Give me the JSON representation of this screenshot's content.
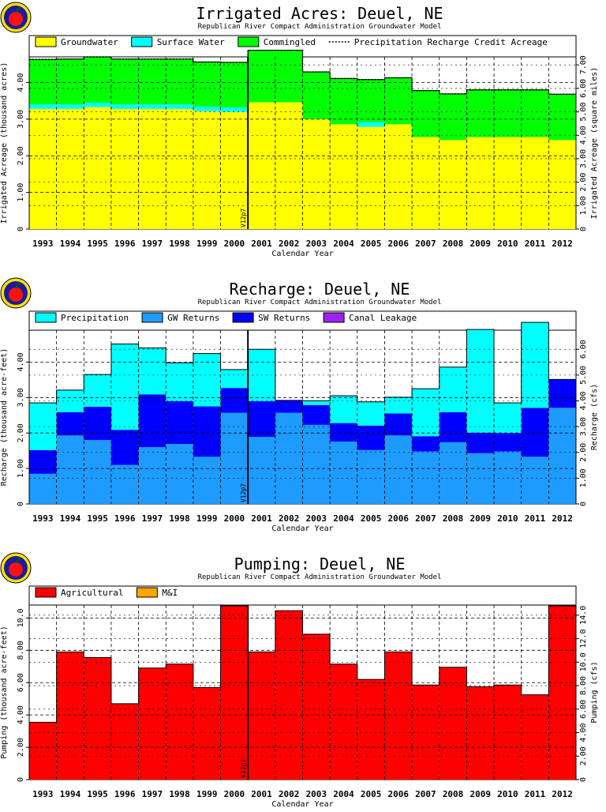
{
  "chart_data": [
    {
      "type": "bar",
      "title": "Irrigated Acres: Deuel, NE",
      "subtitle": "Republican River Compact Administration Groundwater Model",
      "xlabel": "Calendar Year",
      "ylabel": "Irrigated Acreage (thousand acres)",
      "y2label": "Irrigated Acreage (square miles)",
      "categories": [
        "1993",
        "1994",
        "1995",
        "1996",
        "1997",
        "1998",
        "1999",
        "2000",
        "2001",
        "2002",
        "2003",
        "2004",
        "2005",
        "2006",
        "2007",
        "2008",
        "2009",
        "2010",
        "2011",
        "2012"
      ],
      "ylim": [
        0,
        4.7
      ],
      "yticks": [
        0,
        1.0,
        2.0,
        3.0,
        4.0
      ],
      "ytick_labels": [
        "0",
        "1.00",
        "2.00",
        "3.00",
        "4.00"
      ],
      "y2ticks": [
        0,
        1.0,
        2.0,
        3.0,
        4.0,
        5.0,
        6.0,
        7.0
      ],
      "y2ytick_labels": [],
      "y2tick_labels": [
        "0",
        "1.00",
        "2.00",
        "3.00",
        "4.00",
        "5.00",
        "6.00",
        "7.00"
      ],
      "y2scale": 0.64,
      "stacked": true,
      "legend_position": "top",
      "grid": true,
      "series": [
        {
          "name": "Groundwater",
          "color": "#ffff00",
          "values": [
            3.28,
            3.28,
            3.33,
            3.28,
            3.28,
            3.28,
            3.22,
            3.2,
            3.46,
            3.46,
            3.0,
            2.86,
            2.79,
            2.86,
            2.51,
            2.43,
            2.51,
            2.51,
            2.51,
            2.43
          ]
        },
        {
          "name": "Surface Water",
          "color": "#00ffff",
          "values": [
            0.12,
            0.12,
            0.12,
            0.12,
            0.12,
            0.12,
            0.12,
            0.12,
            0,
            0,
            0,
            0,
            0.13,
            0,
            0,
            0,
            0,
            0,
            0,
            0
          ]
        },
        {
          "name": "Commingled",
          "color": "#00ff00",
          "values": [
            1.23,
            1.24,
            1.25,
            1.24,
            1.24,
            1.24,
            1.22,
            1.23,
            1.42,
            1.42,
            1.29,
            1.25,
            1.16,
            1.27,
            1.27,
            1.26,
            1.29,
            1.29,
            1.29,
            1.25
          ]
        }
      ],
      "line_series": {
        "name": "Precipitation Recharge Credit Acreage",
        "values": [
          4.63,
          4.64,
          4.7,
          4.64,
          4.64,
          4.64,
          4.56,
          4.55,
          4.88,
          4.88,
          4.29,
          4.11,
          4.08,
          4.13,
          3.78,
          3.69,
          3.8,
          3.8,
          3.8,
          3.68
        ]
      },
      "marker_label": "V12p7",
      "marker_after_index": 7
    },
    {
      "type": "bar",
      "title": "Recharge: Deuel, NE",
      "subtitle": "Republican River Compact Administration Groundwater Model",
      "xlabel": "Calendar Year",
      "ylabel": "Recharge (thousand acre-feet)",
      "y2label": "Recharge (cfs)",
      "categories": [
        "1993",
        "1994",
        "1995",
        "1996",
        "1997",
        "1998",
        "1999",
        "2000",
        "2001",
        "2002",
        "2003",
        "2004",
        "2005",
        "2006",
        "2007",
        "2008",
        "2009",
        "2010",
        "2011",
        "2012"
      ],
      "ylim": [
        0,
        4.9
      ],
      "yticks": [
        0,
        1.0,
        2.0,
        3.0,
        4.0
      ],
      "ytick_labels": [
        "0",
        "1.00",
        "2.00",
        "3.00",
        "4.00"
      ],
      "y2ticks": [
        0,
        1.0,
        2.0,
        3.0,
        4.0,
        5.0,
        6.0
      ],
      "y2tick_labels": [
        "0",
        "1.00",
        "2.00",
        "3.00",
        "4.00",
        "5.00",
        "6.00"
      ],
      "y2scale": 0.7267,
      "stacked": true,
      "legend_position": "top",
      "grid": true,
      "series": [
        {
          "name": "GW Returns",
          "color": "#1e9bff",
          "values": [
            0.85,
            1.93,
            1.8,
            1.1,
            1.6,
            1.69,
            1.33,
            2.57,
            1.89,
            2.57,
            2.23,
            1.76,
            1.52,
            1.93,
            1.48,
            1.74,
            1.43,
            1.48,
            1.33,
            2.71
          ]
        },
        {
          "name": "SW Returns",
          "color": "#0000ff",
          "values": [
            0.67,
            0.66,
            0.94,
            0.99,
            1.49,
            1.21,
            1.42,
            0.7,
            1.01,
            0.35,
            0.56,
            0.52,
            0.69,
            0.62,
            0.43,
            0.85,
            0.58,
            0.52,
            1.38,
            0.8
          ]
        },
        {
          "name": "Precipitation",
          "color": "#00ffff",
          "values": [
            1.33,
            0.62,
            0.91,
            2.42,
            1.31,
            1.08,
            1.49,
            0.52,
            1.46,
            0.0,
            0.12,
            0.77,
            0.67,
            0.46,
            1.34,
            1.27,
            2.91,
            0.85,
            2.41,
            0.0
          ]
        },
        {
          "name": "Canal Leakage",
          "color": "#a020f0",
          "values": [
            0,
            0,
            0,
            0,
            0,
            0,
            0,
            0,
            0,
            0,
            0,
            0,
            0,
            0,
            0,
            0,
            0,
            0,
            0,
            0
          ]
        }
      ],
      "legend_order": [
        "Precipitation",
        "GW Returns",
        "SW Returns",
        "Canal Leakage"
      ],
      "marker_label": "V12p7",
      "marker_after_index": 7
    },
    {
      "type": "bar",
      "title": "Pumping: Deuel, NE",
      "subtitle": "Republican River Compact Administration Groundwater Model",
      "xlabel": "Calendar Year",
      "ylabel": "Pumping (thousand acre-feet)",
      "y2label": "Pumping (cfs)",
      "categories": [
        "1993",
        "1994",
        "1995",
        "1996",
        "1997",
        "1998",
        "1999",
        "2000",
        "2001",
        "2002",
        "2003",
        "2004",
        "2005",
        "2006",
        "2007",
        "2008",
        "2009",
        "2010",
        "2011",
        "2012"
      ],
      "ylim": [
        0,
        10.8
      ],
      "yticks": [
        0,
        2.0,
        4.0,
        6.0,
        8.0,
        10.0
      ],
      "ytick_labels": [
        "0",
        "2.00",
        "4.00",
        "6.00",
        "8.00",
        "10.0"
      ],
      "y2ticks": [
        0,
        2.0,
        4.0,
        6.0,
        8.0,
        10.0,
        12.0,
        14.0
      ],
      "y2tick_labels": [
        "0",
        "2.00",
        "4.00",
        "6.00",
        "8.00",
        "10.0",
        "12.0",
        "14.0"
      ],
      "y2scale": 0.7267,
      "stacked": true,
      "legend_position": "top",
      "grid": true,
      "series": [
        {
          "name": "Agricultural",
          "color": "#ff0000",
          "values": [
            3.55,
            7.9,
            7.55,
            4.7,
            6.9,
            7.15,
            5.7,
            10.75,
            7.9,
            10.45,
            9.0,
            7.15,
            6.2,
            7.9,
            5.85,
            6.95,
            5.75,
            5.85,
            5.25,
            10.75
          ]
        },
        {
          "name": "M&I",
          "color": "#ffa500",
          "values": [
            0,
            0,
            0,
            0,
            0,
            0,
            0,
            0,
            0,
            0,
            0,
            0,
            0,
            0,
            0,
            0,
            0,
            0,
            0,
            0
          ]
        }
      ],
      "marker_label": "V12p7",
      "marker_after_index": 7
    }
  ]
}
